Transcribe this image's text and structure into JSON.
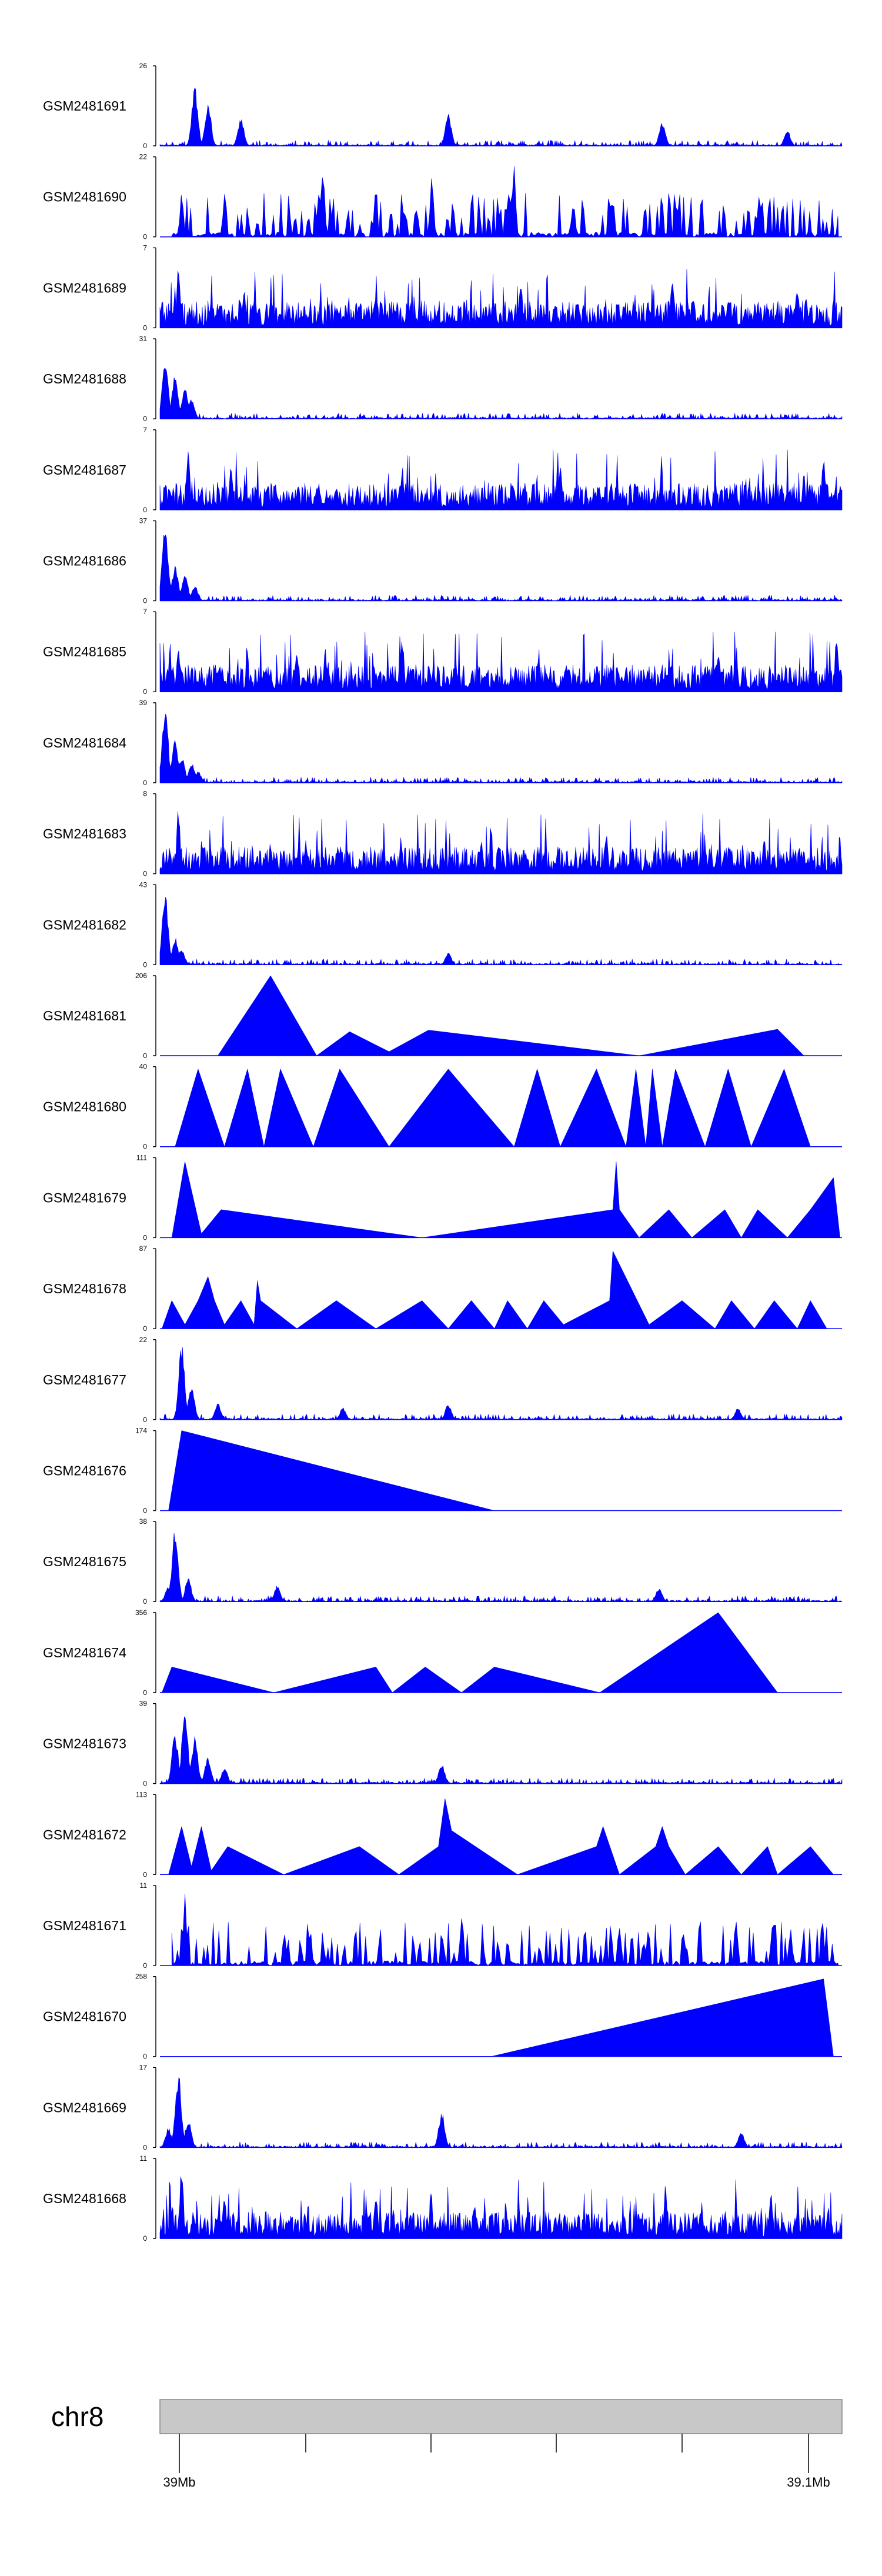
{
  "colors": {
    "signal": "#0000ff",
    "axis": "#000000",
    "ideogram_fill": "#c8c8c8",
    "ideogram_stroke": "#888888"
  },
  "chart_data": {
    "type": "area",
    "title": "",
    "chromosome": "chr8",
    "region_mb": [
      39.0,
      39.1
    ],
    "position_ticks": [
      {
        "mb": 39.0,
        "label": "39Mb"
      },
      {
        "mb": 39.02,
        "label": ""
      },
      {
        "mb": 39.04,
        "label": ""
      },
      {
        "mb": 39.06,
        "label": ""
      },
      {
        "mb": 39.08,
        "label": ""
      },
      {
        "mb": 39.1,
        "label": "39.1Mb"
      }
    ],
    "tracks": [
      {
        "name": "GSM2481691",
        "ymax": 26,
        "ymin": 0,
        "pattern": "peaky",
        "peaks": [
          [
            39.0025,
            0.75
          ],
          [
            39.0045,
            0.55
          ],
          [
            39.0095,
            0.35
          ],
          [
            39.041,
            0.42
          ],
          [
            39.0735,
            0.32
          ],
          [
            39.0925,
            0.2
          ]
        ]
      },
      {
        "name": "GSM2481690",
        "ymax": 22,
        "ymin": 0,
        "pattern": "sparse",
        "peaks": [
          [
            38.998,
            0.35
          ],
          [
            39.0005,
            0.6
          ],
          [
            39.007,
            0.55
          ],
          [
            39.022,
            0.9
          ],
          [
            39.0385,
            0.85
          ],
          [
            39.051,
            0.97
          ],
          [
            39.06,
            0.5
          ],
          [
            39.066,
            0.5
          ]
        ]
      },
      {
        "name": "GSM2481689",
        "ymax": 7,
        "ymin": 0,
        "pattern": "dense",
        "peaks": [
          [
            39.0,
            0.8
          ],
          [
            39.01,
            0.5
          ],
          [
            39.03,
            0.45
          ],
          [
            39.052,
            0.6
          ],
          [
            39.075,
            0.7
          ],
          [
            39.094,
            0.55
          ]
        ]
      },
      {
        "name": "GSM2481688",
        "ymax": 31,
        "ymin": 0,
        "pattern": "peaky",
        "peaks": [
          [
            38.998,
            0.75
          ],
          [
            38.9995,
            0.55
          ],
          [
            39.001,
            0.4
          ],
          [
            39.002,
            0.25
          ]
        ]
      },
      {
        "name": "GSM2481687",
        "ymax": 7,
        "ymin": 0,
        "pattern": "dense",
        "peaks": [
          [
            39.0015,
            0.8
          ],
          [
            39.008,
            0.6
          ],
          [
            39.034,
            0.55
          ],
          [
            39.058,
            0.6
          ],
          [
            39.098,
            0.7
          ]
        ]
      },
      {
        "name": "GSM2481686",
        "ymax": 37,
        "ymin": 0,
        "pattern": "peaky",
        "peaks": [
          [
            38.998,
            0.95
          ],
          [
            38.9995,
            0.45
          ],
          [
            39.001,
            0.35
          ],
          [
            39.0025,
            0.2
          ]
        ]
      },
      {
        "name": "GSM2481685",
        "ymax": 7,
        "ymin": 0,
        "pattern": "dense",
        "peaks": [
          [
            39.0,
            0.6
          ],
          [
            39.018,
            0.55
          ],
          [
            39.034,
            0.7
          ],
          [
            39.082,
            0.55
          ],
          [
            39.1,
            0.8
          ]
        ]
      },
      {
        "name": "GSM2481684",
        "ymax": 39,
        "ymin": 0,
        "pattern": "peaky",
        "peaks": [
          [
            38.998,
            0.95
          ],
          [
            38.9995,
            0.55
          ],
          [
            39.0005,
            0.35
          ],
          [
            39.002,
            0.25
          ],
          [
            39.003,
            0.15
          ]
        ]
      },
      {
        "name": "GSM2481683",
        "ymax": 8,
        "ymin": 0,
        "pattern": "dense",
        "peaks": [
          [
            39.0,
            0.85
          ],
          [
            39.014,
            0.4
          ],
          [
            39.046,
            0.45
          ],
          [
            39.065,
            0.5
          ],
          [
            39.089,
            0.45
          ]
        ]
      },
      {
        "name": "GSM2481682",
        "ymax": 43,
        "ymin": 0,
        "pattern": "peaky",
        "peaks": [
          [
            38.998,
            0.9
          ],
          [
            38.9995,
            0.35
          ],
          [
            39.0005,
            0.2
          ],
          [
            39.041,
            0.15
          ]
        ]
      },
      {
        "name": "GSM2481681",
        "ymax": 206,
        "ymin": 0,
        "pattern": "triangles",
        "points": [
          [
            39.006,
            0
          ],
          [
            39.014,
            1.0
          ],
          [
            39.021,
            0
          ],
          [
            39.026,
            0.3
          ],
          [
            39.032,
            0.05
          ],
          [
            39.038,
            0.32
          ],
          [
            39.07,
            0
          ],
          [
            39.091,
            0.33
          ],
          [
            39.095,
            0
          ]
        ]
      },
      {
        "name": "GSM2481680",
        "ymax": 40,
        "ymin": 0,
        "pattern": "triangles",
        "points": [
          [
            38.9995,
            0
          ],
          [
            39.003,
            0.97
          ],
          [
            39.007,
            0
          ],
          [
            39.0105,
            0.97
          ],
          [
            39.013,
            0
          ],
          [
            39.0155,
            0.97
          ],
          [
            39.0205,
            0
          ],
          [
            39.0245,
            0.97
          ],
          [
            39.032,
            0
          ],
          [
            39.041,
            0.97
          ],
          [
            39.051,
            0
          ],
          [
            39.0545,
            0.97
          ],
          [
            39.058,
            0
          ],
          [
            39.0635,
            0.97
          ],
          [
            39.068,
            0
          ],
          [
            39.0695,
            0.97
          ],
          [
            39.071,
            0
          ],
          [
            39.072,
            0.97
          ],
          [
            39.0735,
            0
          ],
          [
            39.0755,
            0.97
          ],
          [
            39.08,
            0
          ],
          [
            39.0835,
            0.97
          ],
          [
            39.087,
            0
          ],
          [
            39.092,
            0.97
          ],
          [
            39.096,
            0
          ]
        ]
      },
      {
        "name": "GSM2481679",
        "ymax": 111,
        "ymin": 0,
        "pattern": "triangles",
        "points": [
          [
            38.999,
            0
          ],
          [
            39.001,
            0.95
          ],
          [
            39.0035,
            0.05
          ],
          [
            39.0065,
            0.35
          ],
          [
            39.037,
            0
          ],
          [
            39.066,
            0.35
          ],
          [
            39.0665,
            0.95
          ],
          [
            39.067,
            0.35
          ],
          [
            39.07,
            0
          ],
          [
            39.0745,
            0.35
          ],
          [
            39.078,
            0
          ],
          [
            39.083,
            0.35
          ],
          [
            39.0855,
            0
          ],
          [
            39.088,
            0.35
          ],
          [
            39.0925,
            0
          ],
          [
            39.096,
            0.35
          ],
          [
            39.0995,
            0.75
          ],
          [
            39.1005,
            0
          ]
        ]
      },
      {
        "name": "GSM2481678",
        "ymax": 87,
        "ymin": 0,
        "pattern": "triangles",
        "points": [
          [
            38.9975,
            0
          ],
          [
            38.999,
            0.35
          ],
          [
            39.001,
            0.05
          ],
          [
            39.003,
            0.35
          ],
          [
            39.0045,
            0.65
          ],
          [
            39.0055,
            0.35
          ],
          [
            39.007,
            0.05
          ],
          [
            39.0095,
            0.35
          ],
          [
            39.0115,
            0.05
          ],
          [
            39.012,
            0.6
          ],
          [
            39.0125,
            0.35
          ],
          [
            39.018,
            0
          ],
          [
            39.024,
            0.35
          ],
          [
            39.03,
            0
          ],
          [
            39.037,
            0.35
          ],
          [
            39.041,
            0
          ],
          [
            39.0445,
            0.35
          ],
          [
            39.048,
            0
          ],
          [
            39.05,
            0.35
          ],
          [
            39.053,
            0
          ],
          [
            39.0555,
            0.35
          ],
          [
            39.0585,
            0.05
          ],
          [
            39.0655,
            0.35
          ],
          [
            39.066,
            0.97
          ],
          [
            39.0715,
            0.05
          ],
          [
            39.0765,
            0.35
          ],
          [
            39.0815,
            0
          ],
          [
            39.084,
            0.35
          ],
          [
            39.0875,
            0
          ],
          [
            39.0905,
            0.35
          ],
          [
            39.094,
            0
          ],
          [
            39.096,
            0.35
          ],
          [
            39.0985,
            0
          ]
        ]
      },
      {
        "name": "GSM2481677",
        "ymax": 22,
        "ymin": 0,
        "pattern": "peaky",
        "peaks": [
          [
            39.0005,
            0.95
          ],
          [
            39.002,
            0.45
          ],
          [
            39.006,
            0.2
          ],
          [
            39.025,
            0.15
          ],
          [
            39.041,
            0.2
          ],
          [
            39.085,
            0.15
          ]
        ]
      },
      {
        "name": "GSM2481676",
        "ymax": 174,
        "ymin": 0,
        "pattern": "triangles",
        "points": [
          [
            38.9985,
            0
          ],
          [
            39.0005,
            1.0
          ],
          [
            39.048,
            0
          ]
        ]
      },
      {
        "name": "GSM2481675",
        "ymax": 38,
        "ymin": 0,
        "pattern": "peaky",
        "peaks": [
          [
            38.9985,
            0.2
          ],
          [
            38.9995,
            0.95
          ],
          [
            39.0015,
            0.3
          ],
          [
            39.015,
            0.2
          ],
          [
            39.073,
            0.18
          ]
        ]
      },
      {
        "name": "GSM2481674",
        "ymax": 356,
        "ymin": 0,
        "pattern": "triangles",
        "points": [
          [
            38.9975,
            0
          ],
          [
            38.999,
            0.32
          ],
          [
            39.0145,
            0
          ],
          [
            39.03,
            0.32
          ],
          [
            39.0325,
            0
          ],
          [
            39.0375,
            0.32
          ],
          [
            39.043,
            0
          ],
          [
            39.048,
            0.32
          ],
          [
            39.064,
            0
          ],
          [
            39.082,
            1.0
          ],
          [
            39.091,
            0
          ]
        ]
      },
      {
        "name": "GSM2481673",
        "ymax": 39,
        "ymin": 0,
        "pattern": "peaky",
        "peaks": [
          [
            38.9995,
            0.65
          ],
          [
            39.001,
            0.95
          ],
          [
            39.0025,
            0.6
          ],
          [
            39.0045,
            0.35
          ],
          [
            39.007,
            0.2
          ],
          [
            39.04,
            0.25
          ]
        ]
      },
      {
        "name": "GSM2481672",
        "ymax": 113,
        "ymin": 0,
        "pattern": "triangles",
        "points": [
          [
            38.9985,
            0
          ],
          [
            39.0005,
            0.6
          ],
          [
            39.002,
            0.1
          ],
          [
            39.0035,
            0.6
          ],
          [
            39.005,
            0.05
          ],
          [
            39.0075,
            0.35
          ],
          [
            39.016,
            0
          ],
          [
            39.0275,
            0.35
          ],
          [
            39.0335,
            0
          ],
          [
            39.0395,
            0.35
          ],
          [
            39.0405,
            0.95
          ],
          [
            39.0415,
            0.55
          ],
          [
            39.0515,
            0
          ],
          [
            39.0635,
            0.35
          ],
          [
            39.0645,
            0.6
          ],
          [
            39.067,
            0
          ],
          [
            39.0725,
            0.35
          ],
          [
            39.0735,
            0.6
          ],
          [
            39.0745,
            0.35
          ],
          [
            39.077,
            0
          ],
          [
            39.082,
            0.35
          ],
          [
            39.0855,
            0
          ],
          [
            39.0895,
            0.35
          ],
          [
            39.091,
            0
          ],
          [
            39.096,
            0.35
          ],
          [
            39.0995,
            0
          ]
        ]
      },
      {
        "name": "GSM2481671",
        "ymax": 11,
        "ymin": 0,
        "pattern": "sparse",
        "peaks": [
          [
            39.001,
            0.95
          ],
          [
            39.02,
            0.5
          ],
          [
            39.043,
            0.6
          ],
          [
            39.067,
            0.55
          ],
          [
            39.093,
            0.5
          ]
        ]
      },
      {
        "name": "GSM2481670",
        "ymax": 258,
        "ymin": 0,
        "pattern": "triangles",
        "points": [
          [
            39.0475,
            0
          ],
          [
            39.098,
            0.97
          ],
          [
            39.0995,
            0
          ]
        ]
      },
      {
        "name": "GSM2481669",
        "ymax": 17,
        "ymin": 0,
        "pattern": "peaky",
        "peaks": [
          [
            38.9985,
            0.25
          ],
          [
            39.0,
            0.95
          ],
          [
            39.0015,
            0.35
          ],
          [
            39.04,
            0.45
          ],
          [
            39.0855,
            0.2
          ]
        ]
      },
      {
        "name": "GSM2481668",
        "ymax": 11,
        "ymin": 0,
        "pattern": "dense",
        "peaks": [
          [
            39.0005,
            0.97
          ],
          [
            39.007,
            0.55
          ],
          [
            39.03,
            0.6
          ],
          [
            39.045,
            0.5
          ],
          [
            39.074,
            0.7
          ],
          [
            39.09,
            0.6
          ]
        ]
      }
    ]
  }
}
